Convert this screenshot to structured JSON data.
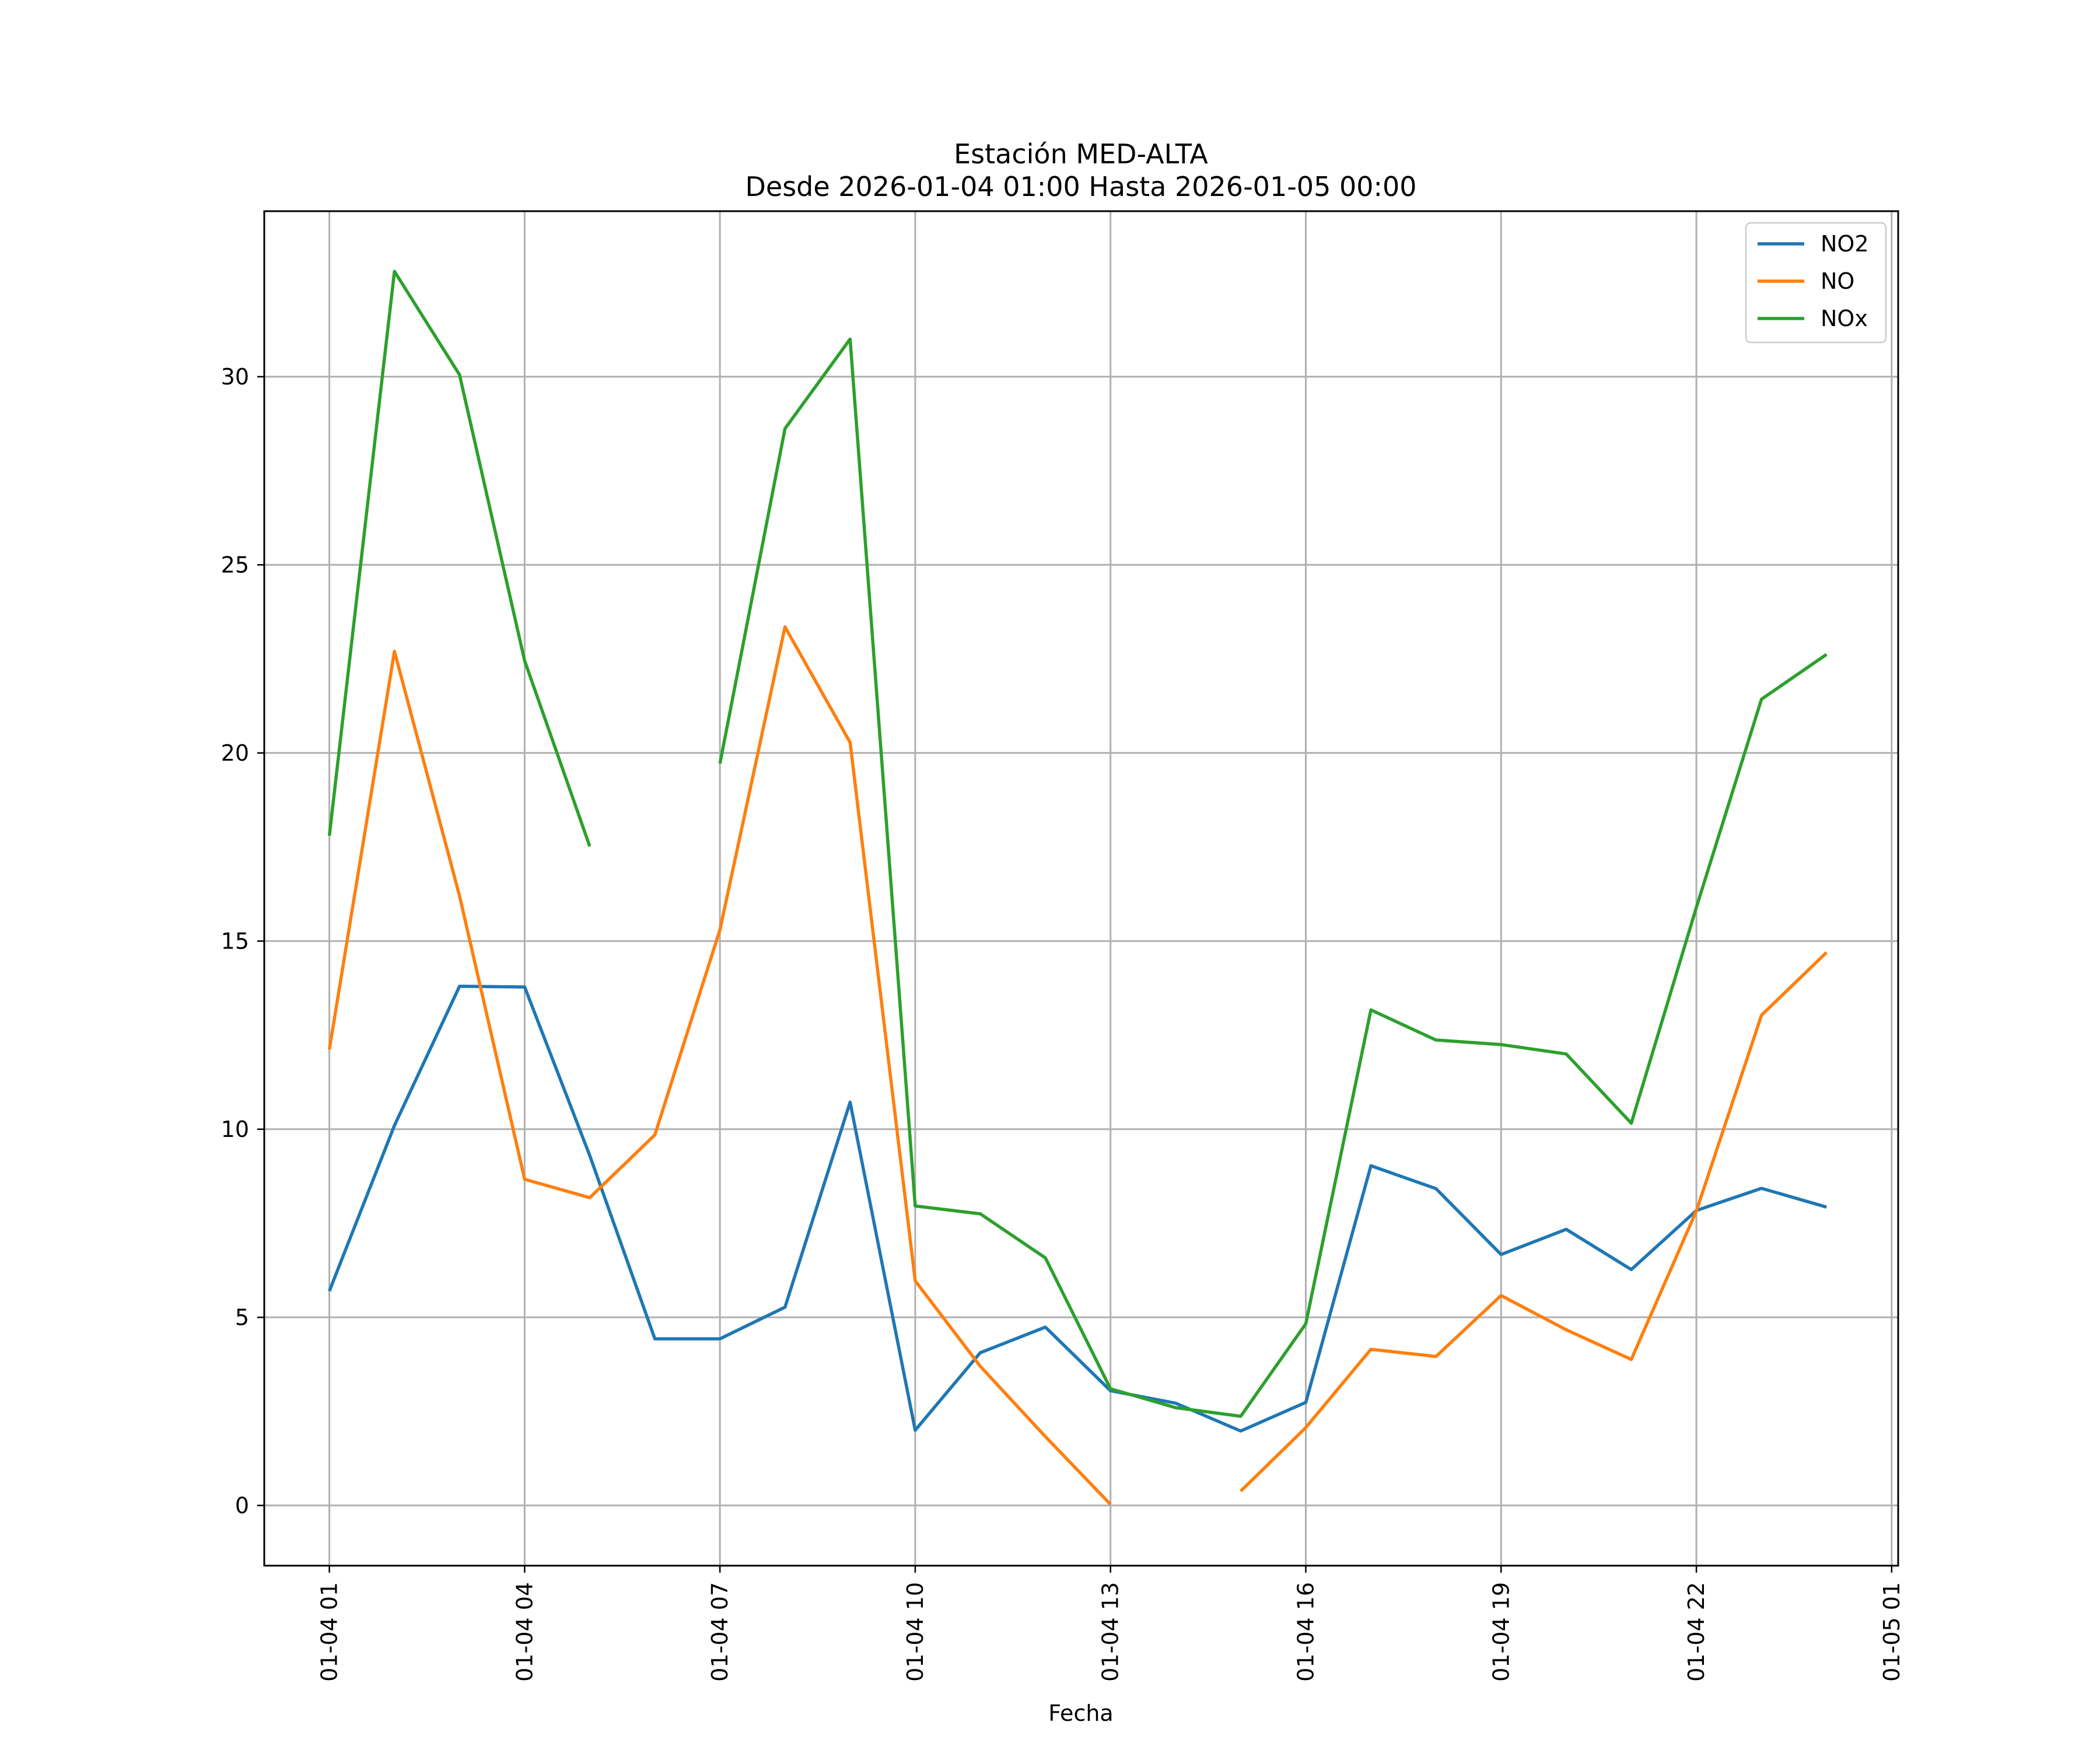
{
  "chart_data": {
    "type": "line",
    "title": "Estación MED-ALTA",
    "subtitle": "Desde 2026-01-04 01:00 Hasta 2026-01-05 00:00",
    "xlabel": "Fecha",
    "ylabel": "",
    "x": [
      "2026-01-04 01:00",
      "2026-01-04 02:00",
      "2026-01-04 03:00",
      "2026-01-04 04:00",
      "2026-01-04 05:00",
      "2026-01-04 06:00",
      "2026-01-04 07:00",
      "2026-01-04 08:00",
      "2026-01-04 09:00",
      "2026-01-04 10:00",
      "2026-01-04 11:00",
      "2026-01-04 12:00",
      "2026-01-04 13:00",
      "2026-01-04 14:00",
      "2026-01-04 15:00",
      "2026-01-04 16:00",
      "2026-01-04 17:00",
      "2026-01-04 18:00",
      "2026-01-04 19:00",
      "2026-01-04 20:00",
      "2026-01-04 21:00",
      "2026-01-04 22:00",
      "2026-01-04 23:00",
      "2026-01-05 00:00"
    ],
    "xlim": [
      "2026-01-04 00:00",
      "2026-01-05 01:06"
    ],
    "ylim": [
      -1.6,
      34.4
    ],
    "x_ticks": [
      "01-04 01",
      "01-04 04",
      "01-04 07",
      "01-04 10",
      "01-04 13",
      "01-04 16",
      "01-04 19",
      "01-04 22",
      "01-05 01"
    ],
    "x_tick_values": [
      "2026-01-04 01:00",
      "2026-01-04 04:00",
      "2026-01-04 07:00",
      "2026-01-04 10:00",
      "2026-01-04 13:00",
      "2026-01-04 16:00",
      "2026-01-04 19:00",
      "2026-01-04 22:00",
      "2026-01-05 01:00"
    ],
    "y_ticks": [
      0,
      5,
      10,
      15,
      20,
      25,
      30
    ],
    "grid": true,
    "legend_position": "top-right",
    "series": [
      {
        "name": "NO2",
        "color": "#1f77b4",
        "values": [
          5.7,
          10.1,
          13.8,
          13.78,
          9.3,
          4.43,
          4.43,
          5.27,
          10.72,
          2.0,
          4.06,
          4.74,
          3.05,
          2.72,
          1.98,
          2.74,
          9.03,
          8.42,
          6.67,
          7.34,
          6.27,
          7.84,
          8.43,
          7.93
        ]
      },
      {
        "name": "NO",
        "color": "#ff7f0e",
        "values": [
          12.12,
          22.7,
          16.2,
          8.67,
          8.18,
          9.85,
          15.3,
          23.35,
          20.28,
          5.97,
          3.7,
          1.83,
          0.03,
          null,
          0.38,
          2.07,
          4.15,
          3.96,
          5.58,
          4.67,
          3.88,
          7.83,
          13.03,
          14.7
        ]
      },
      {
        "name": "NOx",
        "color": "#2ca02c",
        "values": [
          17.8,
          32.8,
          30.05,
          22.45,
          17.52,
          null,
          19.72,
          28.62,
          31.0,
          7.96,
          7.75,
          6.58,
          3.1,
          2.6,
          2.37,
          4.83,
          13.17,
          12.37,
          12.25,
          12.0,
          10.16,
          15.9,
          21.43,
          22.62
        ]
      }
    ]
  }
}
